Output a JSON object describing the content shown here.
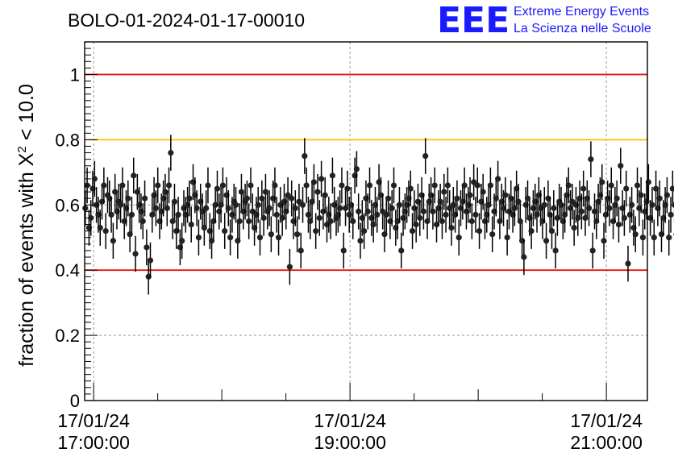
{
  "chart_data": {
    "type": "scatter",
    "title": "BOLO-01-2024-01-17-00010",
    "ylabel": "fraction of events with X² < 10.0",
    "ylabel_parts": [
      "fraction of events with X",
      "2",
      " < 10.0"
    ],
    "xlabel": "",
    "ylim": [
      0,
      1.1
    ],
    "yticks": [
      {
        "value": 0,
        "label": "0"
      },
      {
        "value": 0.2,
        "label": "0.2"
      },
      {
        "value": 0.4,
        "label": "0.4"
      },
      {
        "value": 0.6,
        "label": "0.6"
      },
      {
        "value": 0.8,
        "label": "0.8"
      },
      {
        "value": 1.0,
        "label": "1"
      }
    ],
    "xlim_hours": [
      16.93,
      21.32
    ],
    "xticks": [
      {
        "hour": 17,
        "date": "17/01/24",
        "time": "17:00:00"
      },
      {
        "hour": 19,
        "date": "17/01/24",
        "time": "19:00:00"
      },
      {
        "hour": 21,
        "date": "17/01/24",
        "time": "21:00:00"
      }
    ],
    "reference_lines": [
      {
        "value": 1.0,
        "color": "#e8140a"
      },
      {
        "value": 0.8,
        "color": "#ffbf00"
      },
      {
        "value": 0.4,
        "color": "#e8140a"
      }
    ],
    "grid": true,
    "marker_color": "#222222",
    "error_bar": 0.055,
    "series": [
      {
        "x_start_hour": 16.935,
        "x_step_hour": 0.0145,
        "values": [
          0.59,
          0.66,
          0.53,
          0.56,
          0.65,
          0.68,
          0.6,
          0.57,
          0.53,
          0.61,
          0.66,
          0.52,
          0.63,
          0.62,
          0.57,
          0.49,
          0.64,
          0.58,
          0.61,
          0.6,
          0.66,
          0.55,
          0.59,
          0.62,
          0.51,
          0.57,
          0.69,
          0.45,
          0.64,
          0.6,
          0.58,
          0.55,
          0.62,
          0.47,
          0.38,
          0.43,
          0.57,
          0.63,
          0.59,
          0.66,
          0.55,
          0.58,
          0.62,
          0.64,
          0.59,
          0.66,
          0.76,
          0.55,
          0.61,
          0.52,
          0.57,
          0.47,
          0.49,
          0.59,
          0.57,
          0.6,
          0.62,
          0.54,
          0.67,
          0.63,
          0.59,
          0.5,
          0.61,
          0.58,
          0.53,
          0.59,
          0.66,
          0.52,
          0.49,
          0.55,
          0.6,
          0.65,
          0.58,
          0.6,
          0.66,
          0.52,
          0.63,
          0.59,
          0.5,
          0.57,
          0.61,
          0.6,
          0.49,
          0.55,
          0.64,
          0.58,
          0.61,
          0.62,
          0.55,
          0.66,
          0.58,
          0.53,
          0.57,
          0.6,
          0.5,
          0.62,
          0.56,
          0.64,
          0.58,
          0.59,
          0.51,
          0.62,
          0.66,
          0.57,
          0.5,
          0.6,
          0.56,
          0.61,
          0.58,
          0.63,
          0.41,
          0.62,
          0.55,
          0.59,
          0.51,
          0.61,
          0.46,
          0.6,
          0.75,
          0.66,
          0.57,
          0.55,
          0.61,
          0.67,
          0.52,
          0.64,
          0.56,
          0.68,
          0.58,
          0.63,
          0.54,
          0.57,
          0.55,
          0.69,
          0.6,
          0.56,
          0.57,
          0.59,
          0.66,
          0.46,
          0.59,
          0.65,
          0.57,
          0.6,
          0.55,
          0.69,
          0.71,
          0.58,
          0.49,
          0.56,
          0.52,
          0.62,
          0.58,
          0.66,
          0.56,
          0.54,
          0.6,
          0.57,
          0.67,
          0.63,
          0.58,
          0.51,
          0.57,
          0.62,
          0.55,
          0.59,
          0.66,
          0.53,
          0.55,
          0.6,
          0.46,
          0.56,
          0.58,
          0.6,
          0.62,
          0.65,
          0.52,
          0.59,
          0.54,
          0.61,
          0.56,
          0.63,
          0.58,
          0.75,
          0.55,
          0.61,
          0.63,
          0.58,
          0.66,
          0.54,
          0.59,
          0.61,
          0.55,
          0.64,
          0.57,
          0.66,
          0.59,
          0.53,
          0.6,
          0.57,
          0.62,
          0.5,
          0.59,
          0.61,
          0.66,
          0.58,
          0.6,
          0.63,
          0.55,
          0.67,
          0.57,
          0.66,
          0.52,
          0.61,
          0.64,
          0.55,
          0.57,
          0.6,
          0.66,
          0.51,
          0.58,
          0.62,
          0.68,
          0.55,
          0.61,
          0.59,
          0.63,
          0.5,
          0.58,
          0.62,
          0.57,
          0.59,
          0.65,
          0.61,
          0.55,
          0.49,
          0.44,
          0.6,
          0.62,
          0.56,
          0.52,
          0.59,
          0.61,
          0.57,
          0.63,
          0.59,
          0.55,
          0.6,
          0.49,
          0.62,
          0.57,
          0.52,
          0.59,
          0.46,
          0.56,
          0.61,
          0.6,
          0.55,
          0.57,
          0.63,
          0.66,
          0.59,
          0.61,
          0.53,
          0.6,
          0.56,
          0.62,
          0.58,
          0.65,
          0.56,
          0.62,
          0.59,
          0.74,
          0.46,
          0.58,
          0.55,
          0.61,
          0.63,
          0.67,
          0.49,
          0.57,
          0.62,
          0.59,
          0.66,
          0.55,
          0.6,
          0.62,
          0.54,
          0.72,
          0.59,
          0.56,
          0.65,
          0.42,
          0.57,
          0.6,
          0.53,
          0.51,
          0.66,
          0.59,
          0.63,
          0.5,
          0.58,
          0.61,
          0.67,
          0.56,
          0.6,
          0.5,
          0.65,
          0.59,
          0.62,
          0.51,
          0.56,
          0.6,
          0.63,
          0.5,
          0.57,
          0.65,
          0.6,
          0.51,
          0.55,
          0.48,
          0.61,
          0.52
        ]
      }
    ]
  },
  "logo": {
    "letters": "EEE",
    "line1": "Extreme Energy Events",
    "line2": "La Scienza nelle Scuole"
  }
}
